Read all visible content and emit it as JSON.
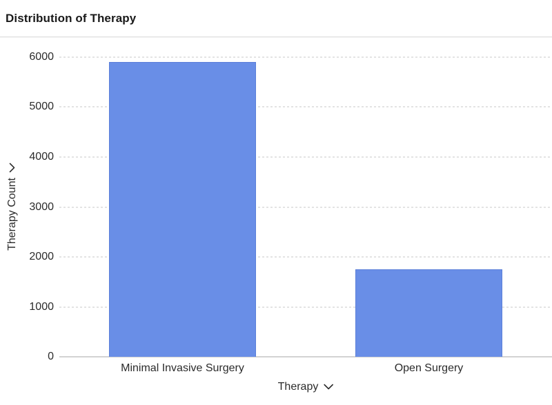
{
  "header": {
    "title": "Distribution of Therapy"
  },
  "chart_data": {
    "type": "bar",
    "title": "Distribution of Therapy",
    "categories": [
      "Minimal Invasive Surgery",
      "Open Surgery"
    ],
    "values": [
      5900,
      1750
    ],
    "xlabel": "Therapy",
    "ylabel": "Therapy Count",
    "ylim": [
      0,
      6000
    ],
    "ytick_step": 1000,
    "ytick_labels": [
      "0",
      "1000",
      "2000",
      "3000",
      "4000",
      "5000",
      "6000"
    ],
    "grid": "horizontal-dashed",
    "legend": "none",
    "bar_color": "#698EE7"
  },
  "icons": {
    "x_axis_dropdown": "chevron-down-icon",
    "y_axis_dropdown": "chevron-down-icon"
  },
  "colors": {
    "background": "#FFFFFF",
    "bar_fill": "#698EE7",
    "bar_border": "#5B7FD9",
    "gridline": "#E3E3E3",
    "baseline": "#D2D2D2",
    "text": "#2B2B2B",
    "title_text": "#1A1A1A",
    "divider": "#DCDCDC"
  }
}
